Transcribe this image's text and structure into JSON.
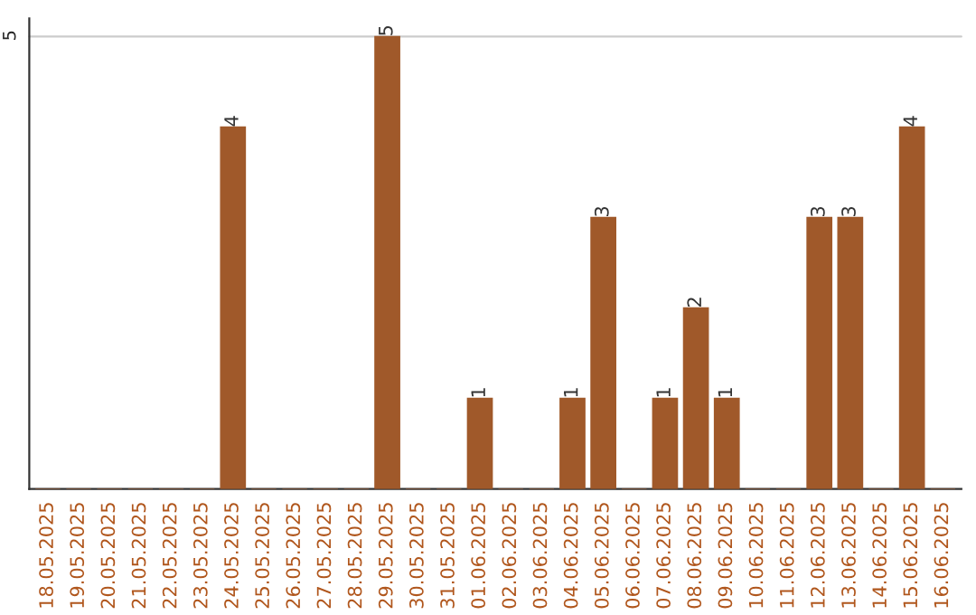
{
  "chart_data": {
    "type": "bar",
    "categories": [
      "18.05.2025",
      "19.05.2025",
      "20.05.2025",
      "21.05.2025",
      "22.05.2025",
      "23.05.2025",
      "24.05.2025",
      "25.05.2025",
      "26.05.2025",
      "27.05.2025",
      "28.05.2025",
      "29.05.2025",
      "30.05.2025",
      "31.05.2025",
      "01.06.2025",
      "02.06.2025",
      "03.06.2025",
      "04.06.2025",
      "05.06.2025",
      "06.06.2025",
      "07.06.2025",
      "08.06.2025",
      "09.06.2025",
      "10.06.2025",
      "11.06.2025",
      "12.06.2025",
      "13.06.2025",
      "14.06.2025",
      "15.06.2025",
      "16.06.2025"
    ],
    "values": [
      0,
      0,
      0,
      0,
      0,
      0,
      4,
      0,
      0,
      0,
      0,
      5,
      0,
      0,
      1,
      0,
      0,
      1,
      3,
      0,
      1,
      2,
      1,
      0,
      0,
      3,
      3,
      0,
      4,
      0
    ],
    "value_labels": [
      null,
      null,
      null,
      null,
      null,
      null,
      "4",
      null,
      null,
      null,
      null,
      "5",
      null,
      null,
      "1",
      null,
      null,
      "1",
      "3",
      null,
      "1",
      "2",
      "1",
      null,
      null,
      "3",
      "3",
      null,
      "4",
      null
    ],
    "color": "#a0592a",
    "ylim": [
      0,
      5.2
    ],
    "yticks": [
      5
    ],
    "grid": "y"
  }
}
